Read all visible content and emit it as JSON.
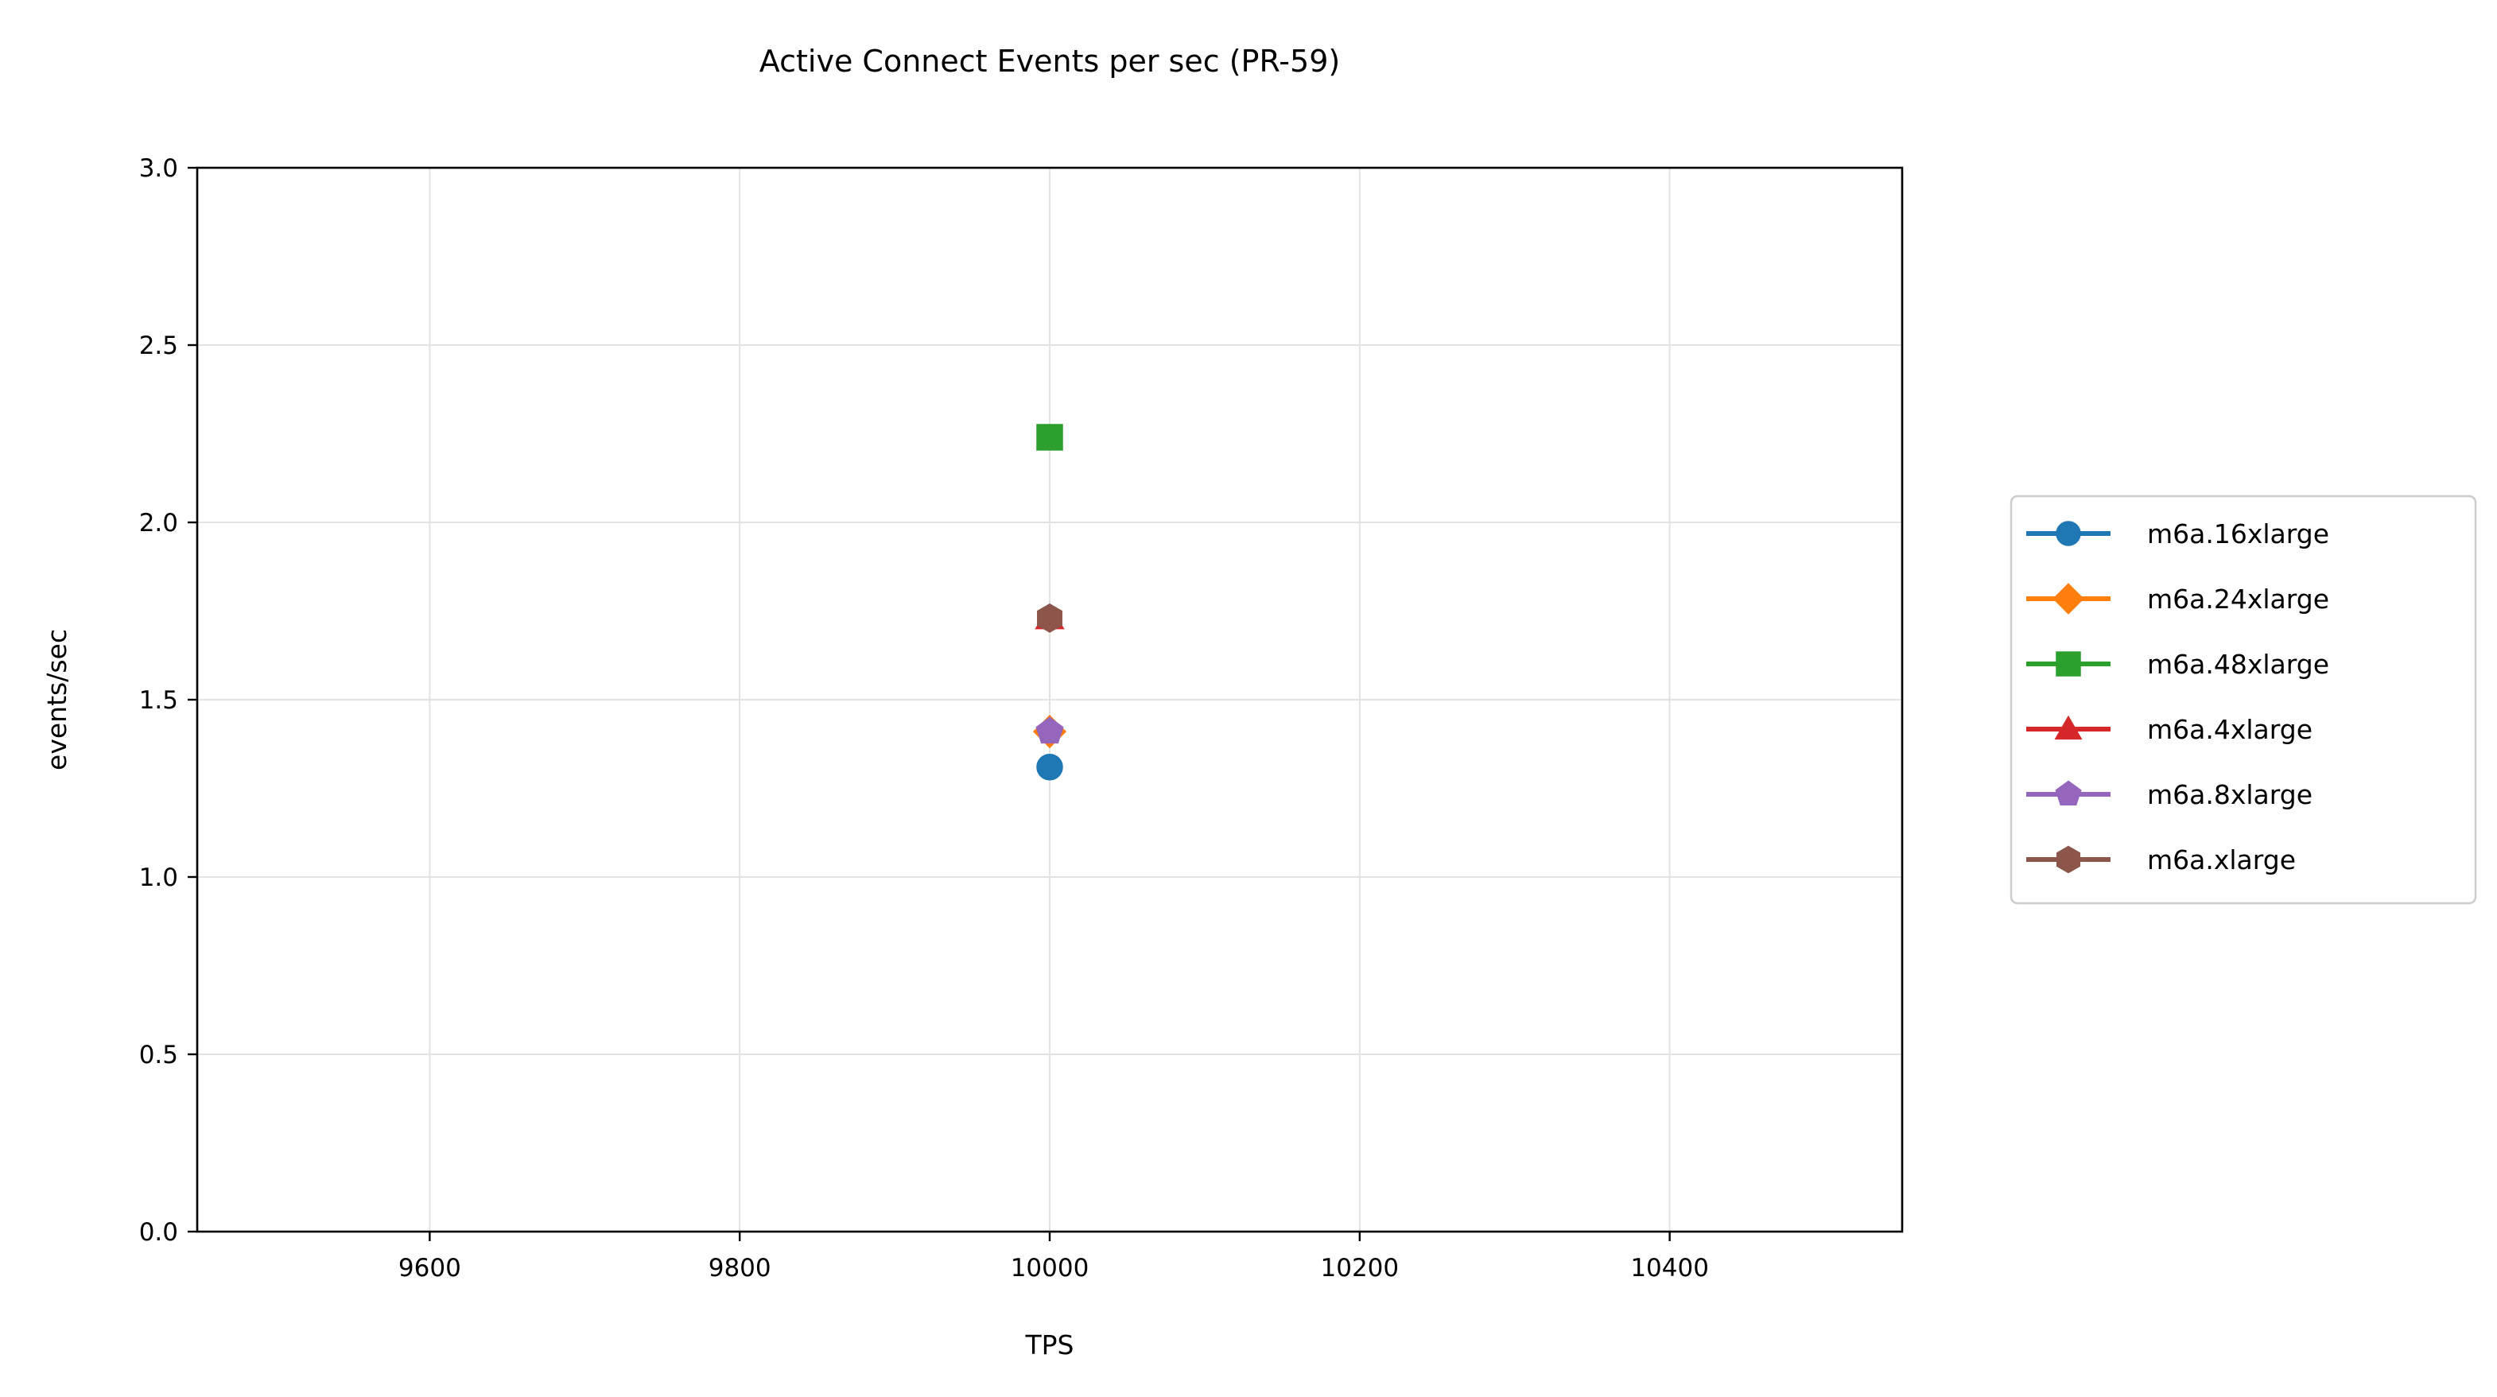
{
  "chart_data": {
    "type": "scatter",
    "title": "Active Connect Events per sec (PR-59)",
    "xlabel": "TPS",
    "ylabel": "events/sec",
    "xlim": [
      9450,
      10550
    ],
    "ylim": [
      0,
      3.0
    ],
    "x_ticks": [
      9600,
      9800,
      10000,
      10200,
      10400
    ],
    "y_ticks": [
      0.0,
      0.5,
      1.0,
      1.5,
      2.0,
      2.5,
      3.0
    ],
    "x_tick_labels": [
      "9600",
      "9800",
      "10000",
      "10200",
      "10400"
    ],
    "y_tick_labels": [
      "0.0",
      "0.5",
      "1.0",
      "1.5",
      "2.0",
      "2.5",
      "3.0"
    ],
    "grid": true,
    "legend_position": "right, outside plot area",
    "series": [
      {
        "name": "m6a.16xlarge",
        "marker": "circle",
        "color": "#1f77b4",
        "x": [
          10000
        ],
        "y": [
          1.31
        ]
      },
      {
        "name": "m6a.24xlarge",
        "marker": "diamond",
        "color": "#ff7f0e",
        "x": [
          10000
        ],
        "y": [
          1.41
        ]
      },
      {
        "name": "m6a.48xlarge",
        "marker": "square",
        "color": "#2ca02c",
        "x": [
          10000
        ],
        "y": [
          2.24
        ]
      },
      {
        "name": "m6a.4xlarge",
        "marker": "triangle",
        "color": "#d62728",
        "x": [
          10000
        ],
        "y": [
          1.73
        ]
      },
      {
        "name": "m6a.8xlarge",
        "marker": "pentagon",
        "color": "#9467bd",
        "x": [
          10000
        ],
        "y": [
          1.41
        ]
      },
      {
        "name": "m6a.xlarge",
        "marker": "hexagon",
        "color": "#8c564b",
        "x": [
          10000
        ],
        "y": [
          1.73
        ]
      }
    ]
  }
}
